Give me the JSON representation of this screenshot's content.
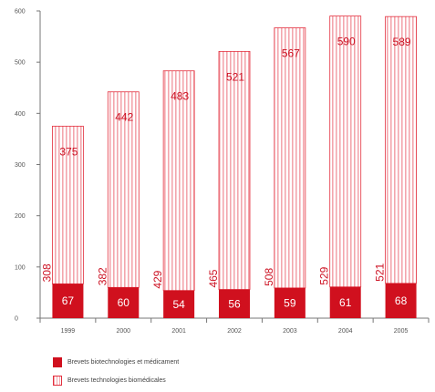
{
  "chart_data": {
    "type": "bar",
    "stacked": true,
    "categories": [
      "1999",
      "2000",
      "2001",
      "2002",
      "2003",
      "2004",
      "2005"
    ],
    "series": [
      {
        "name": "Brevets biotechnologies et médicament",
        "values": [
          67,
          60,
          54,
          56,
          59,
          61,
          68
        ],
        "color": "#d0101e"
      },
      {
        "name": "Brevets technologies biomédicales",
        "values": [
          308,
          382,
          429,
          465,
          508,
          529,
          521
        ],
        "color": "#f3a6ad"
      }
    ],
    "totals": [
      375,
      442,
      483,
      521,
      567,
      590,
      589
    ],
    "total_labels": [
      "375",
      "442",
      "483",
      "521",
      "567",
      "590",
      "589"
    ],
    "rotated_labels": [
      "308",
      "382",
      "429",
      "465",
      "508",
      "529",
      "521"
    ],
    "yticks": [
      "0",
      "100",
      "200",
      "300",
      "400",
      "500",
      "600"
    ],
    "ylim": [
      0,
      600
    ],
    "grid": false,
    "legend_position": "bottom-left"
  },
  "legend": {
    "solid": "Brevets biotechnologies et médicament",
    "striped": "Brevets technologies biomédicales"
  }
}
